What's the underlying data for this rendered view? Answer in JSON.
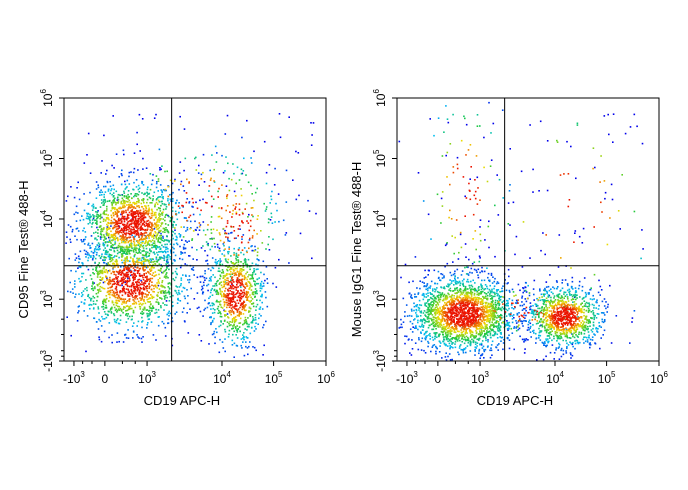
{
  "chart_data": [
    {
      "type": "scatter",
      "subtype": "flow-cytometry-density-dot-plot",
      "xlabel": "CD19 APC-H",
      "ylabel": "CD95 Fine Test® 488-H",
      "x_scale": "biexponential",
      "y_scale": "biexponential",
      "xlim": [
        -3000,
        1000000
      ],
      "ylim": [
        -1000,
        1000000
      ],
      "x_ticks": [
        {
          "value": -1000,
          "base": "-10",
          "exp": "3"
        },
        {
          "value": 0,
          "base": "0",
          "exp": ""
        },
        {
          "value": 1000,
          "base": "10",
          "exp": "3"
        },
        {
          "value": 10000,
          "base": "10",
          "exp": "4"
        },
        {
          "value": 100000,
          "base": "10",
          "exp": "5"
        },
        {
          "value": 1000000,
          "base": "10",
          "exp": "6"
        }
      ],
      "y_ticks": [
        {
          "value": -1000,
          "base": "-10",
          "exp": "3"
        },
        {
          "value": 1000,
          "base": "10",
          "exp": "3"
        },
        {
          "value": 10000,
          "base": "10",
          "exp": "4"
        },
        {
          "value": 100000,
          "base": "10",
          "exp": "5"
        },
        {
          "value": 1000000,
          "base": "10",
          "exp": "6"
        }
      ],
      "quadrant_gate": {
        "x": 2200,
        "y": 2700
      },
      "populations": [
        {
          "x": 400,
          "y": 9000,
          "sx": 0.22,
          "sy": 0.18,
          "n": 1400
        },
        {
          "x": 350,
          "y": 1700,
          "sx": 0.24,
          "sy": 0.2,
          "n": 1300
        },
        {
          "x": 18000,
          "y": 1200,
          "sx": 0.12,
          "sy": 0.22,
          "n": 800
        },
        {
          "x": 20000,
          "y": 8000,
          "sx": 0.18,
          "sy": 0.3,
          "n": 160
        },
        {
          "x": 5000,
          "y": 20000,
          "sx": 0.35,
          "sy": 0.25,
          "n": 140
        }
      ]
    },
    {
      "type": "scatter",
      "subtype": "flow-cytometry-density-dot-plot",
      "xlabel": "CD19 APC-H",
      "ylabel": "Mouse IgG1 Fine Test® 488-H",
      "x_scale": "biexponential",
      "y_scale": "biexponential",
      "xlim": [
        -3000,
        1000000
      ],
      "ylim": [
        -1000,
        1000000
      ],
      "x_ticks": [
        {
          "value": -1000,
          "base": "-10",
          "exp": "3"
        },
        {
          "value": 0,
          "base": "0",
          "exp": ""
        },
        {
          "value": 1000,
          "base": "10",
          "exp": "3"
        },
        {
          "value": 10000,
          "base": "10",
          "exp": "4"
        },
        {
          "value": 100000,
          "base": "10",
          "exp": "5"
        },
        {
          "value": 1000000,
          "base": "10",
          "exp": "6"
        }
      ],
      "y_ticks": [
        {
          "value": -1000,
          "base": "-10",
          "exp": "3"
        },
        {
          "value": 1000,
          "base": "10",
          "exp": "3"
        },
        {
          "value": 10000,
          "base": "10",
          "exp": "4"
        },
        {
          "value": 100000,
          "base": "10",
          "exp": "5"
        },
        {
          "value": 1000000,
          "base": "10",
          "exp": "6"
        }
      ],
      "quadrant_gate": {
        "x": 2200,
        "y": 2700
      },
      "populations": [
        {
          "x": 350,
          "y": 620,
          "sx": 0.22,
          "sy": 0.16,
          "n": 2000
        },
        {
          "x": 15000,
          "y": 560,
          "sx": 0.16,
          "sy": 0.13,
          "n": 1000
        },
        {
          "x": 3500,
          "y": 700,
          "sx": 0.3,
          "sy": 0.12,
          "n": 120
        },
        {
          "x": 400,
          "y": 30000,
          "sx": 0.18,
          "sy": 0.45,
          "n": 90
        },
        {
          "x": 20000,
          "y": 15000,
          "sx": 0.4,
          "sy": 0.5,
          "n": 40
        }
      ]
    }
  ]
}
